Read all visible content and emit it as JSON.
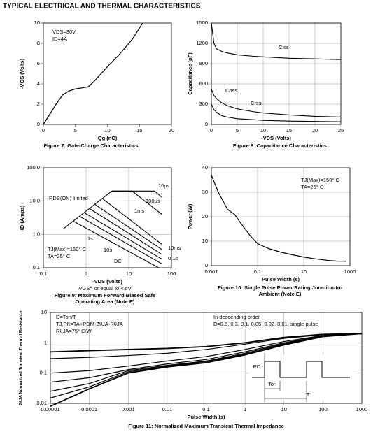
{
  "header": {
    "title": "TYPICAL ELECTRICAL AND THERMAL CHARACTERISTICS"
  },
  "chart_data": [
    {
      "type": "line",
      "title": "Figure 7: Gate-Charge Characteristics",
      "xlabel": "Qg (nC)",
      "ylabel": "-VGS (Volts)",
      "xlim": [
        0,
        20
      ],
      "ylim": [
        0,
        10
      ],
      "xticks": [
        0,
        5,
        10,
        15,
        20
      ],
      "yticks": [
        0,
        2,
        4,
        6,
        8,
        10
      ],
      "grid": false,
      "color": "#000000",
      "x": [
        0,
        1,
        2,
        3,
        4,
        5,
        6,
        7,
        8,
        10,
        12,
        14,
        15.5
      ],
      "values": [
        0,
        1,
        2,
        2.9,
        3.3,
        3.5,
        3.6,
        3.7,
        4.3,
        5.7,
        7,
        8.5,
        10
      ],
      "annotations": [
        "VDS=30V",
        "ID=4A"
      ]
    },
    {
      "type": "line",
      "title": "Figure 8: Capacitance Characteristics",
      "xlabel": "-VDS (Volts)",
      "ylabel": "Capacitance (pF)",
      "xlim": [
        0,
        25
      ],
      "ylim": [
        0,
        1500
      ],
      "xticks": [
        0,
        5,
        10,
        15,
        20,
        25
      ],
      "yticks": [
        0,
        300,
        600,
        900,
        1200,
        1500
      ],
      "grid": true,
      "x": [
        0,
        0.5,
        1,
        2,
        3,
        5,
        8,
        10,
        15,
        20,
        25
      ],
      "series": [
        {
          "name": "Ciss",
          "color": "#000000",
          "values": [
            1500,
            1200,
            1120,
            1080,
            1060,
            1030,
            1010,
            1000,
            980,
            970,
            960
          ]
        },
        {
          "name": "Coss",
          "color": "#000000",
          "values": [
            520,
            430,
            380,
            320,
            280,
            230,
            190,
            170,
            140,
            120,
            110
          ]
        },
        {
          "name": "Crss",
          "color": "#000000",
          "values": [
            300,
            220,
            180,
            130,
            110,
            85,
            70,
            60,
            50,
            45,
            40
          ]
        }
      ]
    },
    {
      "type": "line",
      "title": "Figure 9: Maximum Forward Biased Safe Operating Area (Note E)",
      "xlabel": "-VDS (Volts)",
      "ylabel": "ID (Amps)",
      "xscale": "log",
      "yscale": "log",
      "xlim": [
        0.1,
        100
      ],
      "ylim": [
        0.1,
        100
      ],
      "xticks": [
        0.1,
        1,
        10,
        100
      ],
      "yticks": [
        0.1,
        {
          "value": 1,
          "label": "1.0"
        },
        {
          "value": 10,
          "label": "10.0"
        },
        {
          "value": 100,
          "label": "100.0"
        }
      ],
      "grid": true,
      "series": [
        {
          "name": "RDS(ON) limited",
          "color": "#000000",
          "x": [
            0.3,
            4
          ],
          "values": [
            1.5,
            20
          ]
        },
        {
          "name": "10μs",
          "color": "#000000",
          "x": [
            4,
            40,
            60
          ],
          "values": [
            20,
            20,
            13
          ]
        },
        {
          "name": "100μs",
          "color": "#000000",
          "x": [
            4,
            12,
            60
          ],
          "values": [
            20,
            20,
            4
          ]
        },
        {
          "name": "1ms",
          "color": "#000000",
          "x": [
            2.4,
            60
          ],
          "values": [
            12,
            0.5
          ]
        },
        {
          "name": "10ms",
          "color": "#000000",
          "x": [
            1.6,
            60
          ],
          "values": [
            8,
            0.35
          ]
        },
        {
          "name": "0.1s",
          "color": "#000000",
          "x": [
            1.2,
            60
          ],
          "values": [
            6,
            0.25
          ]
        },
        {
          "name": "1s",
          "color": "#000000",
          "x": [
            0.9,
            60
          ],
          "values": [
            4.5,
            0.18
          ]
        },
        {
          "name": "10s",
          "color": "#000000",
          "x": [
            0.7,
            60
          ],
          "values": [
            3.5,
            0.13
          ]
        },
        {
          "name": "DC",
          "color": "#000000",
          "x": [
            0.5,
            50
          ],
          "values": [
            2.5,
            0.1
          ]
        }
      ],
      "annotations": [
        "TJ(Max)=150° C",
        "TA=25° C",
        "VGS> or equal to 4.5V"
      ]
    },
    {
      "type": "line",
      "title": "Figure 10: Single Pulse Power Rating Junction-to-Ambient (Note E)",
      "xlabel": "Pulse Width (s)",
      "ylabel": "Power (W)",
      "xscale": "log",
      "xlim": [
        0.001,
        1000
      ],
      "ylim": [
        0,
        40
      ],
      "xticks": [
        0.001,
        0.1,
        10,
        1000
      ],
      "yticks": [
        0,
        10,
        20,
        30,
        40
      ],
      "grid": true,
      "color": "#000000",
      "x": [
        0.001,
        0.002,
        0.005,
        0.01,
        0.02,
        0.05,
        0.1,
        0.3,
        1,
        3,
        10,
        30,
        100,
        300,
        700
      ],
      "values": [
        37,
        30,
        23,
        21,
        17,
        12,
        9,
        7,
        5.5,
        4.5,
        3.5,
        2.8,
        2.2,
        1.8,
        1.8
      ],
      "annotations": [
        "TJ(Max)=150° C",
        "TA=25° C"
      ]
    },
    {
      "type": "line",
      "title": "Figure 11: Normalized Maximum Transient Thermal Impedance",
      "xlabel": "Pulse Width (s)",
      "ylabel": "ZθJA Normalized Transient Thermal Resistance",
      "xscale": "log",
      "yscale": "log",
      "xlim": [
        1e-05,
        1000
      ],
      "ylim": [
        0.01,
        10
      ],
      "xticks": [
        1e-05,
        0.0001,
        0.001,
        0.01,
        0.1,
        1,
        10,
        100,
        1000
      ],
      "yticks": [
        0.01,
        0.1,
        1,
        10
      ],
      "grid": true,
      "x": [
        1e-05,
        0.0001,
        0.001,
        0.01,
        0.1,
        1,
        10,
        100,
        1000
      ],
      "series": [
        {
          "color": "#000000",
          "values": [
            0.5,
            0.55,
            0.6,
            0.65,
            0.75,
            1.0,
            1.5,
            1.9,
            2.0
          ]
        },
        {
          "color": "#000000",
          "values": [
            0.3,
            0.33,
            0.38,
            0.45,
            0.6,
            0.9,
            1.4,
            1.85,
            2.0
          ]
        },
        {
          "color": "#000000",
          "values": [
            0.1,
            0.12,
            0.17,
            0.25,
            0.35,
            0.6,
            1.1,
            1.75,
            2.0
          ]
        },
        {
          "color": "#000000",
          "values": [
            0.05,
            0.07,
            0.13,
            0.2,
            0.28,
            0.5,
            1.0,
            1.7,
            2.0
          ]
        },
        {
          "color": "#000000",
          "values": [
            0.025,
            0.045,
            0.12,
            0.18,
            0.25,
            0.45,
            0.95,
            1.7,
            2.0
          ]
        },
        {
          "color": "#000000",
          "values": [
            0.015,
            0.035,
            0.11,
            0.17,
            0.24,
            0.42,
            0.9,
            1.65,
            2.0
          ]
        },
        {
          "color": "#000000",
          "values": [
            0.008,
            0.03,
            0.1,
            0.16,
            0.22,
            0.4,
            0.85,
            1.6,
            2.0
          ]
        }
      ],
      "annotations": [
        "D=Ton/T",
        "TJ,PK=TA+PDM·ZθJA·RθJA",
        "RθJA=75° C/W",
        "In descending order",
        "D=0.5, 0.3, 0.1, 0.05, 0.02, 0.01, single pulse",
        "PD",
        "Ton",
        "T"
      ]
    }
  ]
}
